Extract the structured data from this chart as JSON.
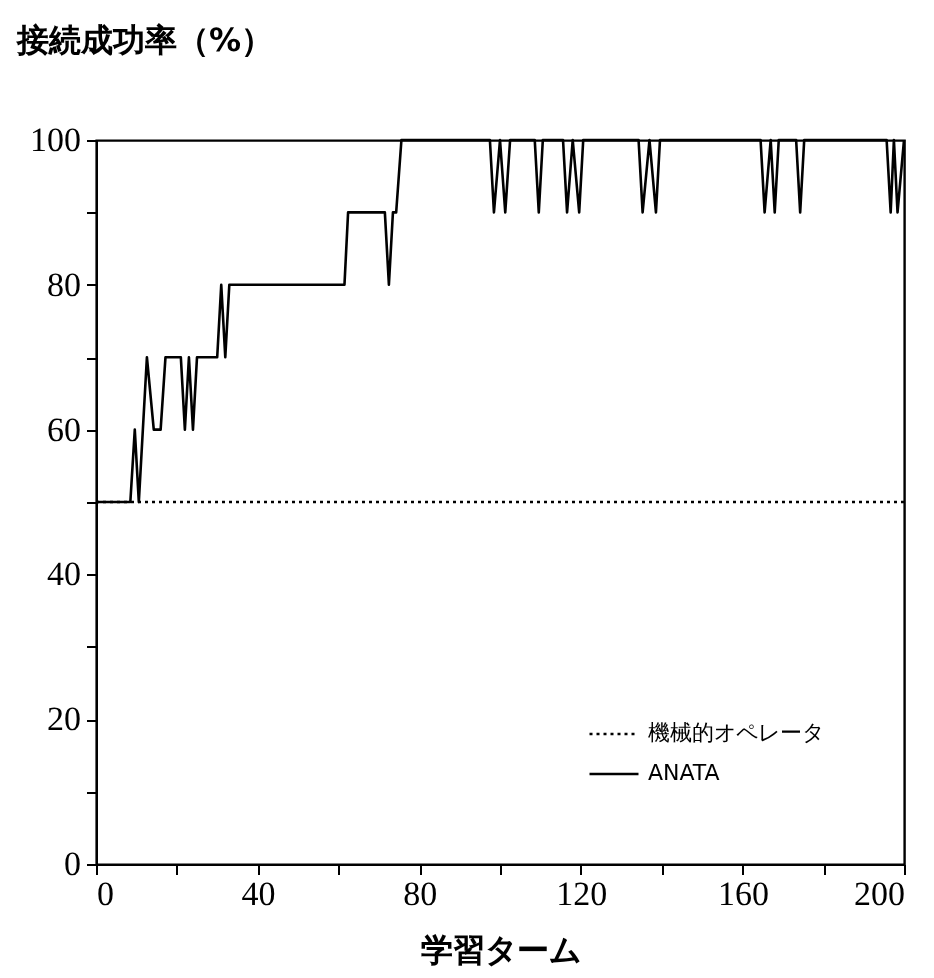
{
  "chart_data": {
    "type": "line",
    "xlabel": "学習ターム",
    "ylabel": "接続成功率（%）",
    "xlim": [
      0,
      200
    ],
    "ylim": [
      0,
      100
    ],
    "xticks": [
      0,
      {
        "value": 20,
        "label": null
      },
      40,
      {
        "value": 60,
        "label": null
      },
      80,
      {
        "value": 100,
        "label": null
      },
      120,
      {
        "value": 140,
        "label": null
      },
      160,
      {
        "value": 180,
        "label": null
      },
      200
    ],
    "yticks": [
      0,
      {
        "value": 10,
        "label": null
      },
      20,
      {
        "value": 30,
        "label": null
      },
      40,
      {
        "value": 50,
        "label": null
      },
      60,
      {
        "value": 70,
        "label": null
      },
      80,
      {
        "value": 90,
        "label": null
      },
      100
    ],
    "grid": false,
    "legend": "bottom right",
    "marker": "none",
    "series": [
      {
        "name": "機械的オペレータ",
        "color": "#000000",
        "line_style": "dotted",
        "x": [
          0,
          200
        ],
        "values": [
          50,
          50
        ]
      },
      {
        "name": "ANATA",
        "color": "#000000",
        "line_style": "solid",
        "x": [
          0,
          8.5,
          9.6,
          10.6,
          12.6,
          14.3,
          16,
          17.2,
          21,
          22,
          23,
          24,
          25,
          30,
          31,
          32,
          33,
          61.5,
          62.4,
          71.5,
          72.5,
          73.5,
          74.3,
          75.6,
          97.5,
          98.5,
          100,
          101.3,
          102.5,
          108.6,
          109.6,
          110.6,
          115.6,
          116.6,
          118,
          119.6,
          120.6,
          134.3,
          135.3,
          137,
          138.6,
          139.6,
          164.5,
          165.5,
          167,
          168,
          169,
          173.3,
          174.3,
          175.3,
          195.7,
          196.7,
          197.5,
          198.4,
          200
        ],
        "values": [
          50,
          50,
          60,
          50,
          70,
          60,
          60,
          70,
          70,
          60,
          70,
          60,
          70,
          70,
          80,
          70,
          80,
          80,
          90,
          90,
          80,
          90,
          90,
          100,
          100,
          90,
          100,
          90,
          100,
          100,
          90,
          100,
          100,
          90,
          100,
          90,
          100,
          100,
          90,
          100,
          90,
          100,
          100,
          90,
          100,
          90,
          100,
          100,
          90,
          100,
          100,
          90,
          100,
          90,
          100
        ]
      }
    ]
  }
}
